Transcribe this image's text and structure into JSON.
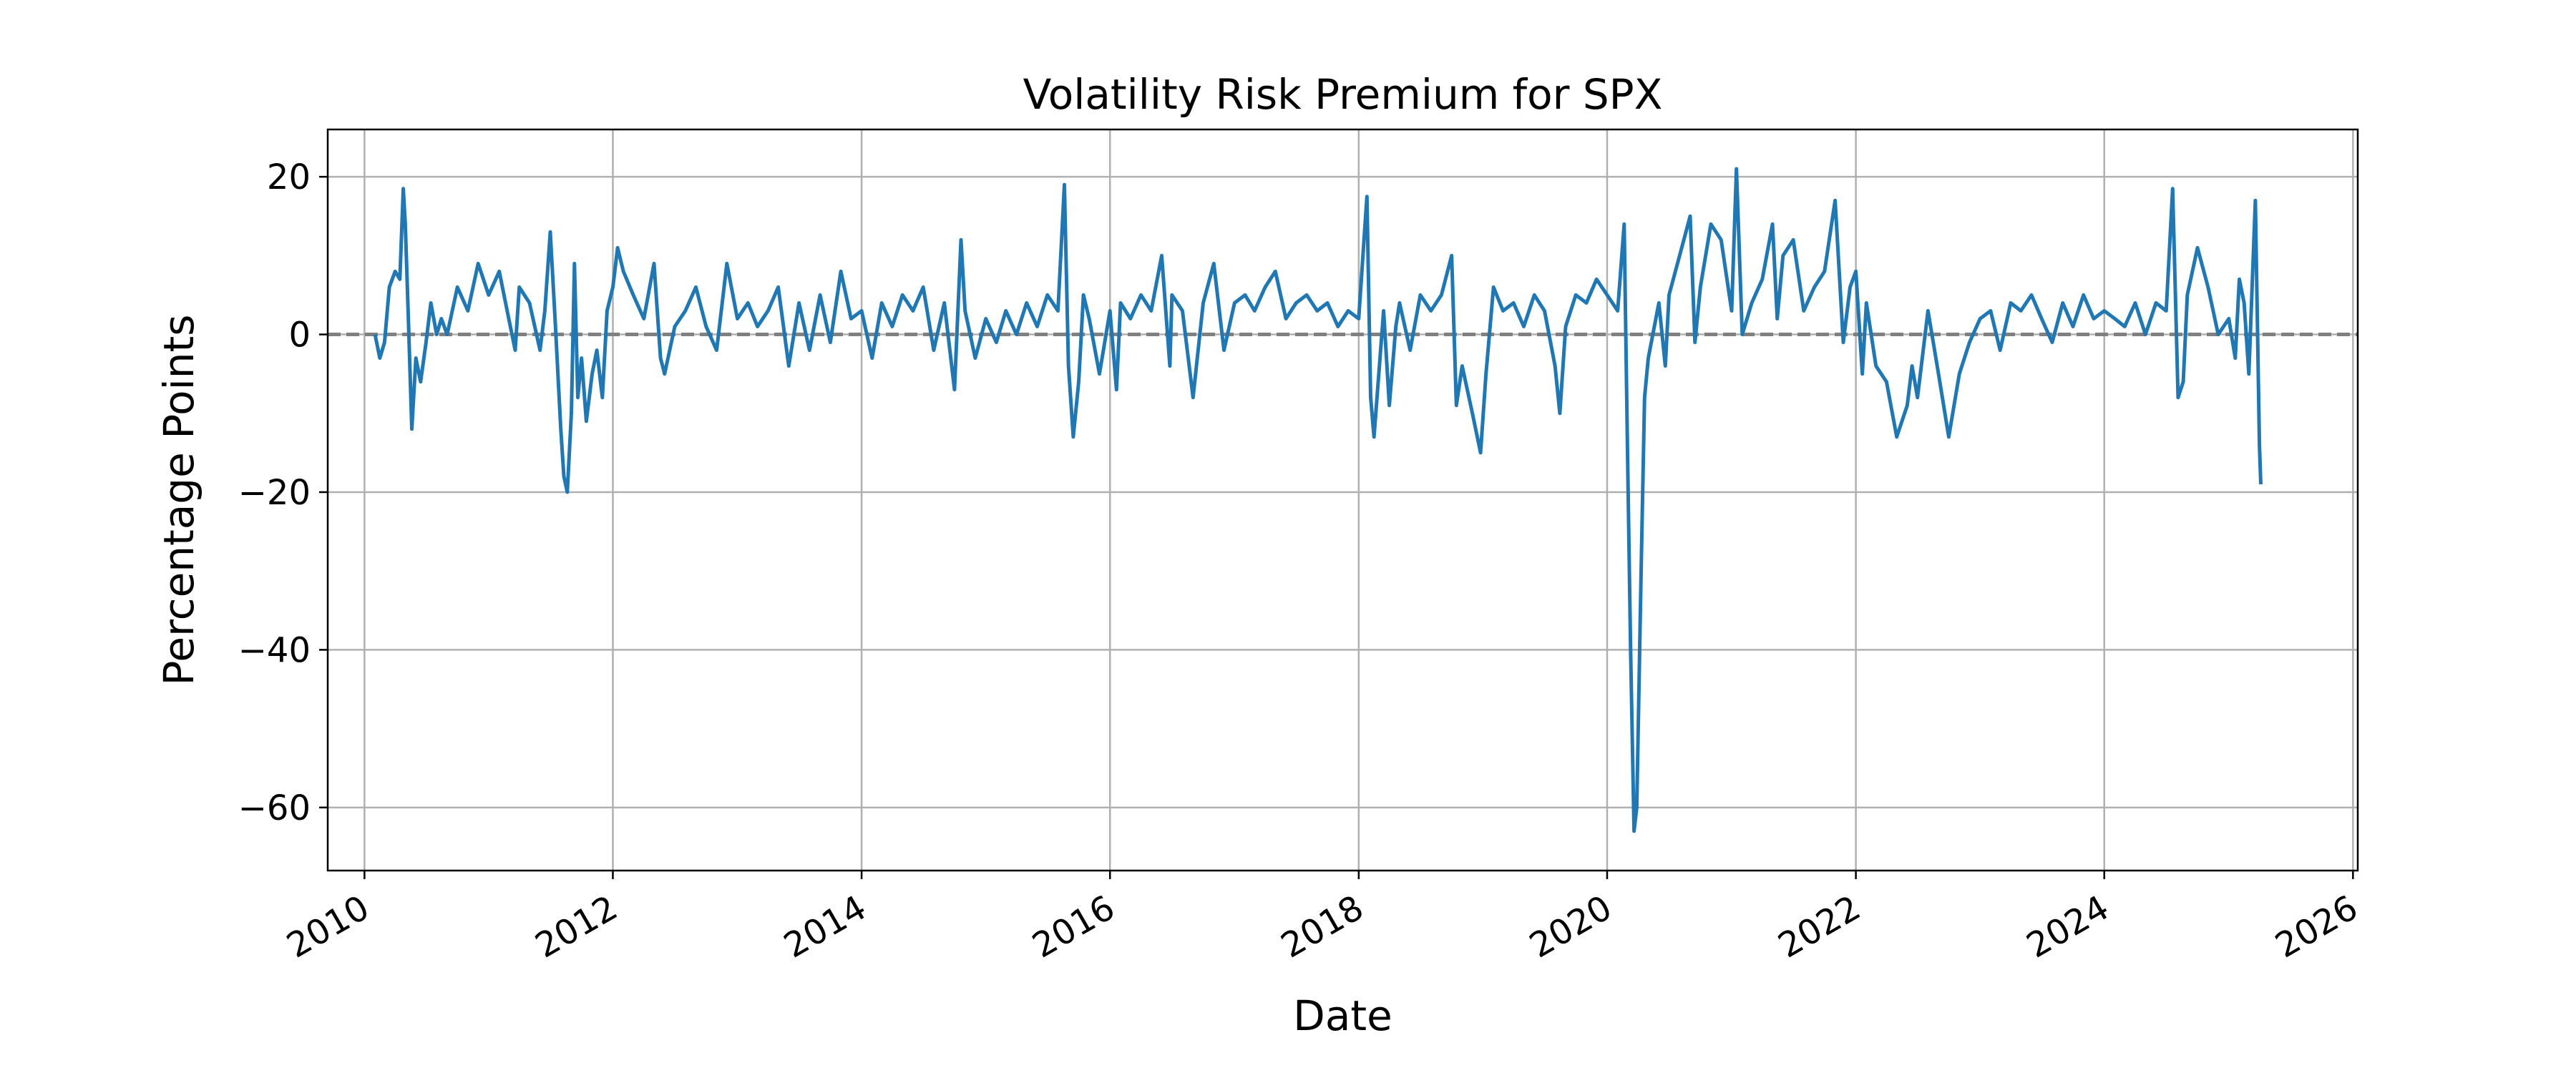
{
  "chart_data": {
    "type": "line",
    "title": "Volatility Risk Premium for SPX",
    "xlabel": "Date",
    "ylabel": "Percentage Points",
    "x_ticks": [
      "2010",
      "2012",
      "2014",
      "2016",
      "2018",
      "2020",
      "2022",
      "2024",
      "2026"
    ],
    "y_ticks": [
      20,
      0,
      -20,
      -40,
      -60
    ],
    "y_tick_labels": [
      "20",
      "0",
      "−20",
      "−40",
      "−60"
    ],
    "xlim": [
      "2009-09-15",
      "2026-01-15"
    ],
    "ylim": [
      -68,
      26
    ],
    "grid": true,
    "reference_line": {
      "y": 0,
      "style": "dashed",
      "color": "#808080"
    },
    "series": [
      {
        "color": "#1f77b4",
        "points": [
          [
            "2010-02-01",
            0
          ],
          [
            "2010-02-15",
            -3
          ],
          [
            "2010-03-01",
            -1
          ],
          [
            "2010-03-15",
            6
          ],
          [
            "2010-04-01",
            8
          ],
          [
            "2010-04-15",
            7
          ],
          [
            "2010-04-25",
            18.5
          ],
          [
            "2010-05-01",
            14
          ],
          [
            "2010-05-10",
            2
          ],
          [
            "2010-05-20",
            -12
          ],
          [
            "2010-06-01",
            -3
          ],
          [
            "2010-06-15",
            -6
          ],
          [
            "2010-07-01",
            -1
          ],
          [
            "2010-07-15",
            4
          ],
          [
            "2010-08-01",
            0
          ],
          [
            "2010-08-15",
            2
          ],
          [
            "2010-09-01",
            0
          ],
          [
            "2010-10-01",
            6
          ],
          [
            "2010-11-01",
            3
          ],
          [
            "2010-12-01",
            9
          ],
          [
            "2011-01-01",
            5
          ],
          [
            "2011-02-01",
            8
          ],
          [
            "2011-03-01",
            2
          ],
          [
            "2011-03-20",
            -2
          ],
          [
            "2011-04-01",
            6
          ],
          [
            "2011-05-01",
            4
          ],
          [
            "2011-06-01",
            -2
          ],
          [
            "2011-06-15",
            3
          ],
          [
            "2011-07-01",
            13
          ],
          [
            "2011-07-15",
            2
          ],
          [
            "2011-08-01",
            -12
          ],
          [
            "2011-08-10",
            -18
          ],
          [
            "2011-08-20",
            -20
          ],
          [
            "2011-09-01",
            -10
          ],
          [
            "2011-09-10",
            9
          ],
          [
            "2011-09-20",
            -8
          ],
          [
            "2011-10-01",
            -3
          ],
          [
            "2011-10-15",
            -11
          ],
          [
            "2011-11-01",
            -5
          ],
          [
            "2011-11-15",
            -2
          ],
          [
            "2011-12-01",
            -8
          ],
          [
            "2011-12-15",
            3
          ],
          [
            "2012-01-01",
            6
          ],
          [
            "2012-01-15",
            11
          ],
          [
            "2012-02-01",
            8
          ],
          [
            "2012-03-01",
            5
          ],
          [
            "2012-04-01",
            2
          ],
          [
            "2012-05-01",
            9
          ],
          [
            "2012-05-20",
            -3
          ],
          [
            "2012-06-01",
            -5
          ],
          [
            "2012-07-01",
            1
          ],
          [
            "2012-08-01",
            3
          ],
          [
            "2012-09-01",
            6
          ],
          [
            "2012-10-01",
            1
          ],
          [
            "2012-11-01",
            -2
          ],
          [
            "2012-12-01",
            9
          ],
          [
            "2013-01-01",
            2
          ],
          [
            "2013-02-01",
            4
          ],
          [
            "2013-03-01",
            1
          ],
          [
            "2013-04-01",
            3
          ],
          [
            "2013-05-01",
            6
          ],
          [
            "2013-06-01",
            -4
          ],
          [
            "2013-07-01",
            4
          ],
          [
            "2013-08-01",
            -2
          ],
          [
            "2013-09-01",
            5
          ],
          [
            "2013-10-01",
            -1
          ],
          [
            "2013-11-01",
            8
          ],
          [
            "2013-12-01",
            2
          ],
          [
            "2014-01-01",
            3
          ],
          [
            "2014-02-01",
            -3
          ],
          [
            "2014-03-01",
            4
          ],
          [
            "2014-04-01",
            1
          ],
          [
            "2014-05-01",
            5
          ],
          [
            "2014-06-01",
            3
          ],
          [
            "2014-07-01",
            6
          ],
          [
            "2014-08-01",
            -2
          ],
          [
            "2014-09-01",
            4
          ],
          [
            "2014-10-01",
            -7
          ],
          [
            "2014-10-20",
            12
          ],
          [
            "2014-11-01",
            3
          ],
          [
            "2014-12-01",
            -3
          ],
          [
            "2015-01-01",
            2
          ],
          [
            "2015-02-01",
            -1
          ],
          [
            "2015-03-01",
            3
          ],
          [
            "2015-04-01",
            0
          ],
          [
            "2015-05-01",
            4
          ],
          [
            "2015-06-01",
            1
          ],
          [
            "2015-07-01",
            5
          ],
          [
            "2015-08-01",
            3
          ],
          [
            "2015-08-20",
            19
          ],
          [
            "2015-09-01",
            -4
          ],
          [
            "2015-09-15",
            -13
          ],
          [
            "2015-10-01",
            -6
          ],
          [
            "2015-10-15",
            5
          ],
          [
            "2015-11-01",
            2
          ],
          [
            "2015-12-01",
            -5
          ],
          [
            "2016-01-01",
            3
          ],
          [
            "2016-01-20",
            -7
          ],
          [
            "2016-02-01",
            4
          ],
          [
            "2016-03-01",
            2
          ],
          [
            "2016-04-01",
            5
          ],
          [
            "2016-05-01",
            3
          ],
          [
            "2016-06-01",
            10
          ],
          [
            "2016-06-25",
            -4
          ],
          [
            "2016-07-01",
            5
          ],
          [
            "2016-08-01",
            3
          ],
          [
            "2016-09-01",
            -8
          ],
          [
            "2016-10-01",
            4
          ],
          [
            "2016-11-01",
            9
          ],
          [
            "2016-12-01",
            -2
          ],
          [
            "2017-01-01",
            4
          ],
          [
            "2017-02-01",
            5
          ],
          [
            "2017-03-01",
            3
          ],
          [
            "2017-04-01",
            6
          ],
          [
            "2017-05-01",
            8
          ],
          [
            "2017-06-01",
            2
          ],
          [
            "2017-07-01",
            4
          ],
          [
            "2017-08-01",
            5
          ],
          [
            "2017-09-01",
            3
          ],
          [
            "2017-10-01",
            4
          ],
          [
            "2017-11-01",
            1
          ],
          [
            "2017-12-01",
            3
          ],
          [
            "2018-01-01",
            2
          ],
          [
            "2018-01-25",
            17.5
          ],
          [
            "2018-02-05",
            -8
          ],
          [
            "2018-02-15",
            -13
          ],
          [
            "2018-03-01",
            -5
          ],
          [
            "2018-03-15",
            3
          ],
          [
            "2018-04-01",
            -9
          ],
          [
            "2018-04-20",
            1
          ],
          [
            "2018-05-01",
            4
          ],
          [
            "2018-06-01",
            -2
          ],
          [
            "2018-07-01",
            5
          ],
          [
            "2018-08-01",
            3
          ],
          [
            "2018-09-01",
            5
          ],
          [
            "2018-10-01",
            10
          ],
          [
            "2018-10-15",
            -9
          ],
          [
            "2018-11-01",
            -4
          ],
          [
            "2018-12-01",
            -10
          ],
          [
            "2018-12-25",
            -15
          ],
          [
            "2019-01-10",
            -5
          ],
          [
            "2019-02-01",
            6
          ],
          [
            "2019-03-01",
            3
          ],
          [
            "2019-04-01",
            4
          ],
          [
            "2019-05-01",
            1
          ],
          [
            "2019-06-01",
            5
          ],
          [
            "2019-07-01",
            3
          ],
          [
            "2019-08-01",
            -4
          ],
          [
            "2019-08-15",
            -10
          ],
          [
            "2019-09-01",
            1
          ],
          [
            "2019-10-01",
            5
          ],
          [
            "2019-11-01",
            4
          ],
          [
            "2019-12-01",
            7
          ],
          [
            "2020-01-01",
            5
          ],
          [
            "2020-02-01",
            3
          ],
          [
            "2020-02-20",
            14
          ],
          [
            "2020-03-01",
            -15
          ],
          [
            "2020-03-10",
            -40
          ],
          [
            "2020-03-20",
            -63
          ],
          [
            "2020-03-28",
            -60
          ],
          [
            "2020-04-10",
            -30
          ],
          [
            "2020-04-20",
            -8
          ],
          [
            "2020-05-01",
            -3
          ],
          [
            "2020-06-01",
            4
          ],
          [
            "2020-06-20",
            -4
          ],
          [
            "2020-07-01",
            5
          ],
          [
            "2020-08-01",
            10
          ],
          [
            "2020-09-01",
            15
          ],
          [
            "2020-09-15",
            -1
          ],
          [
            "2020-10-01",
            6
          ],
          [
            "2020-11-01",
            14
          ],
          [
            "2020-12-01",
            12
          ],
          [
            "2021-01-01",
            3
          ],
          [
            "2021-01-15",
            21
          ],
          [
            "2021-02-01",
            0
          ],
          [
            "2021-03-01",
            4
          ],
          [
            "2021-04-01",
            7
          ],
          [
            "2021-05-01",
            14
          ],
          [
            "2021-05-15",
            2
          ],
          [
            "2021-06-01",
            10
          ],
          [
            "2021-07-01",
            12
          ],
          [
            "2021-08-01",
            3
          ],
          [
            "2021-09-01",
            6
          ],
          [
            "2021-10-01",
            8
          ],
          [
            "2021-11-01",
            17
          ],
          [
            "2021-11-25",
            -1
          ],
          [
            "2021-12-15",
            6
          ],
          [
            "2022-01-01",
            8
          ],
          [
            "2022-01-20",
            -5
          ],
          [
            "2022-02-01",
            4
          ],
          [
            "2022-03-01",
            -4
          ],
          [
            "2022-04-01",
            -6
          ],
          [
            "2022-05-01",
            -13
          ],
          [
            "2022-06-01",
            -9
          ],
          [
            "2022-06-15",
            -4
          ],
          [
            "2022-07-01",
            -8
          ],
          [
            "2022-08-01",
            3
          ],
          [
            "2022-09-01",
            -5
          ],
          [
            "2022-10-01",
            -13
          ],
          [
            "2022-11-01",
            -5
          ],
          [
            "2022-12-01",
            -1
          ],
          [
            "2023-01-01",
            2
          ],
          [
            "2023-02-01",
            3
          ],
          [
            "2023-03-01",
            -2
          ],
          [
            "2023-04-01",
            4
          ],
          [
            "2023-05-01",
            3
          ],
          [
            "2023-06-01",
            5
          ],
          [
            "2023-07-01",
            2
          ],
          [
            "2023-08-01",
            -1
          ],
          [
            "2023-09-01",
            4
          ],
          [
            "2023-10-01",
            1
          ],
          [
            "2023-11-01",
            5
          ],
          [
            "2023-12-01",
            2
          ],
          [
            "2024-01-01",
            3
          ],
          [
            "2024-02-01",
            2
          ],
          [
            "2024-03-01",
            1
          ],
          [
            "2024-04-01",
            4
          ],
          [
            "2024-05-01",
            0
          ],
          [
            "2024-06-01",
            4
          ],
          [
            "2024-07-01",
            3
          ],
          [
            "2024-07-20",
            18.5
          ],
          [
            "2024-08-05",
            -8
          ],
          [
            "2024-08-20",
            -6
          ],
          [
            "2024-09-01",
            5
          ],
          [
            "2024-10-01",
            11
          ],
          [
            "2024-11-01",
            6
          ],
          [
            "2024-12-01",
            0
          ],
          [
            "2025-01-01",
            2
          ],
          [
            "2025-01-20",
            -3
          ],
          [
            "2025-02-01",
            7
          ],
          [
            "2025-02-15",
            4
          ],
          [
            "2025-03-01",
            -5
          ],
          [
            "2025-03-20",
            17
          ],
          [
            "2025-04-01",
            -14
          ],
          [
            "2025-04-05",
            -19
          ]
        ]
      }
    ]
  }
}
